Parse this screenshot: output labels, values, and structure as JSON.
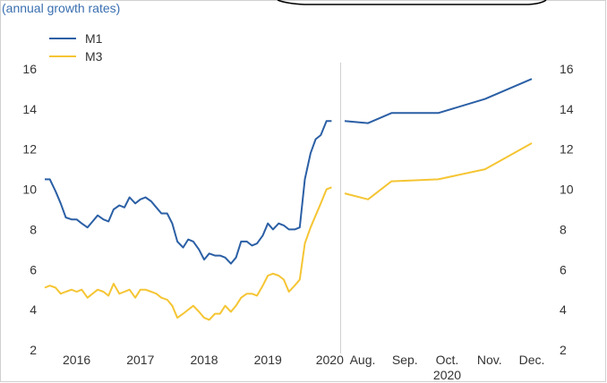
{
  "subtitle": "(annual growth rates)",
  "chart_data": [
    {
      "type": "line",
      "panel": "left",
      "ylim": [
        2,
        16
      ],
      "yticks": [
        2,
        4,
        6,
        8,
        10,
        12,
        14,
        16
      ],
      "xlabels": [
        "2016",
        "2017",
        "2018",
        "2019",
        "2020"
      ],
      "xlim": [
        2015.5,
        2020.05
      ],
      "legend": {
        "placement": "top-left",
        "entries": [
          "M1",
          "M3"
        ]
      },
      "series": [
        {
          "name": "M1",
          "color": "#2b5fa5",
          "x": [
            2015.5,
            2015.58,
            2015.67,
            2015.75,
            2015.83,
            2015.92,
            2016.0,
            2016.08,
            2016.17,
            2016.25,
            2016.33,
            2016.42,
            2016.5,
            2016.58,
            2016.67,
            2016.75,
            2016.83,
            2016.92,
            2017.0,
            2017.08,
            2017.17,
            2017.25,
            2017.33,
            2017.42,
            2017.5,
            2017.58,
            2017.67,
            2017.75,
            2017.83,
            2017.92,
            2018.0,
            2018.08,
            2018.17,
            2018.25,
            2018.33,
            2018.42,
            2018.5,
            2018.58,
            2018.67,
            2018.75,
            2018.83,
            2018.92,
            2019.0,
            2019.08,
            2019.17,
            2019.25,
            2019.33,
            2019.42,
            2019.5,
            2019.58,
            2019.67,
            2019.75,
            2019.83,
            2019.92,
            2020.0
          ],
          "values": [
            10.5,
            10.5,
            9.9,
            9.3,
            8.6,
            8.5,
            8.5,
            8.3,
            8.1,
            8.4,
            8.7,
            8.5,
            8.4,
            9.0,
            9.2,
            9.1,
            9.6,
            9.3,
            9.5,
            9.6,
            9.4,
            9.1,
            8.8,
            8.8,
            8.3,
            7.4,
            7.1,
            7.5,
            7.4,
            7.0,
            6.5,
            6.8,
            6.7,
            6.7,
            6.6,
            6.3,
            6.6,
            7.4,
            7.4,
            7.2,
            7.3,
            7.7,
            8.3,
            8.0,
            8.3,
            8.2,
            8.0,
            8.0,
            8.1,
            10.5,
            11.8,
            12.5,
            12.7,
            13.4,
            13.4
          ]
        },
        {
          "name": "M3",
          "color": "#f5c533",
          "x": [
            2015.5,
            2015.58,
            2015.67,
            2015.75,
            2015.83,
            2015.92,
            2016.0,
            2016.08,
            2016.17,
            2016.25,
            2016.33,
            2016.42,
            2016.5,
            2016.58,
            2016.67,
            2016.75,
            2016.83,
            2016.92,
            2017.0,
            2017.08,
            2017.17,
            2017.25,
            2017.33,
            2017.42,
            2017.5,
            2017.58,
            2017.67,
            2017.75,
            2017.83,
            2017.92,
            2018.0,
            2018.08,
            2018.17,
            2018.25,
            2018.33,
            2018.42,
            2018.5,
            2018.58,
            2018.67,
            2018.75,
            2018.83,
            2018.92,
            2019.0,
            2019.08,
            2019.17,
            2019.25,
            2019.33,
            2019.42,
            2019.5,
            2019.58,
            2019.67,
            2019.75,
            2019.83,
            2019.92,
            2020.0
          ],
          "values": [
            5.1,
            5.2,
            5.1,
            4.8,
            4.9,
            5.0,
            4.9,
            5.0,
            4.6,
            4.8,
            5.0,
            4.9,
            4.7,
            5.3,
            4.8,
            4.9,
            5.0,
            4.6,
            5.0,
            5.0,
            4.9,
            4.8,
            4.6,
            4.5,
            4.2,
            3.6,
            3.8,
            4.0,
            4.2,
            3.9,
            3.6,
            3.5,
            3.8,
            3.8,
            4.2,
            3.9,
            4.2,
            4.6,
            4.8,
            4.8,
            4.7,
            5.2,
            5.7,
            5.8,
            5.7,
            5.5,
            4.9,
            5.2,
            5.5,
            7.3,
            8.1,
            8.7,
            9.3,
            10.0,
            10.1
          ]
        }
      ]
    },
    {
      "type": "line",
      "panel": "right",
      "ylim": [
        2,
        16
      ],
      "yticks": [
        2,
        4,
        6,
        8,
        10,
        12,
        14,
        16
      ],
      "categories": [
        "Aug.",
        "Sep.",
        "Oct.",
        "Nov.",
        "Dec."
      ],
      "xlabel": "2020",
      "series": [
        {
          "name": "M1",
          "color": "#2b5fa5",
          "x": [
            0,
            0.5,
            1.0,
            2.0,
            3.0,
            4.0
          ],
          "values": [
            13.4,
            13.3,
            13.8,
            13.8,
            14.5,
            15.5
          ]
        },
        {
          "name": "M3",
          "color": "#f5c533",
          "x": [
            0,
            0.5,
            1.0,
            2.0,
            3.0,
            4.0
          ],
          "values": [
            9.8,
            9.5,
            10.4,
            10.5,
            11.0,
            12.3
          ]
        }
      ]
    }
  ]
}
